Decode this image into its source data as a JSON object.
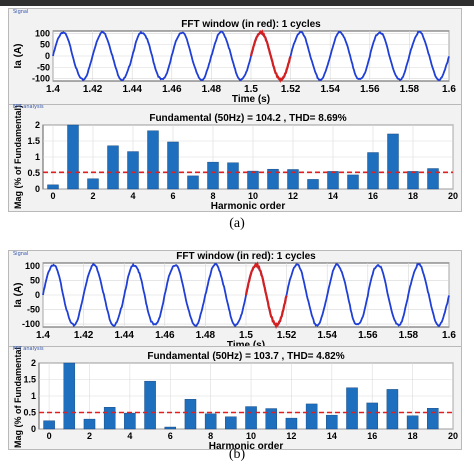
{
  "figures": [
    {
      "caption": "(a)",
      "signal_tag": "Signal",
      "fft_tag": "FFT analysis",
      "signal": {
        "title": "FFT window (in red): 1 cycles",
        "xlabel": "Time (s)",
        "ylabel": "Ia (A)",
        "xlim": [
          1.4,
          1.6
        ],
        "ylim": [
          -110,
          110
        ],
        "xticks": [
          "1.4",
          "1.42",
          "1.44",
          "1.46",
          "1.48",
          "1.5",
          "1.52",
          "1.54",
          "1.56",
          "1.58",
          "1.6"
        ],
        "yticks": [
          "-100",
          "-50",
          "0",
          "50",
          "100"
        ]
      },
      "fft": {
        "title": "Fundamental (50Hz) = 104.2 , THD= 8.69%",
        "xlabel": "Harmonic order",
        "ylabel": "Mag (% of Fundamental)",
        "xticks": [
          "0",
          "2",
          "4",
          "6",
          "8",
          "10",
          "12",
          "14",
          "16",
          "18",
          "20"
        ],
        "yticks": [
          "0",
          "0.5",
          "1",
          "1.5",
          "2"
        ]
      }
    },
    {
      "caption": "(b)",
      "signal_tag": "Signal",
      "fft_tag": "FFT analysis",
      "signal": {
        "title": "FFT window (in red): 1 cycles",
        "xlabel": "Time (s)",
        "ylabel": "Ia (A)",
        "xlim": [
          1.4,
          1.6
        ],
        "ylim": [
          -110,
          110
        ],
        "xticks": [
          "1.4",
          "1.42",
          "1.44",
          "1.46",
          "1.48",
          "1.5",
          "1.52",
          "1.54",
          "1.56",
          "1.58",
          "1.6"
        ],
        "yticks": [
          "-100",
          "-50",
          "0",
          "50",
          "100"
        ]
      },
      "fft": {
        "title": "Fundamental (50Hz) = 103.7 , THD= 4.82%",
        "xlabel": "Harmonic order",
        "ylabel": "Mag (% of Fundamental)",
        "xticks": [
          "0",
          "2",
          "4",
          "6",
          "8",
          "10",
          "12",
          "14",
          "16",
          "18",
          "20"
        ],
        "yticks": [
          "0",
          "0.5",
          "1",
          "1.5",
          "2"
        ]
      }
    }
  ],
  "chart_data": [
    {
      "type": "line",
      "title": "FFT window (in red): 1 cycles",
      "xlabel": "Time (s)",
      "ylabel": "Ia (A)",
      "xlim": [
        1.4,
        1.6
      ],
      "ylim": [
        -110,
        110
      ],
      "series": [
        {
          "role": "signal",
          "frequency_hz": 50,
          "amplitude": 104.2,
          "time_range": [
            1.4,
            1.6
          ],
          "color": "#1f3fd6"
        },
        {
          "role": "fft-window",
          "frequency_hz": 50,
          "amplitude": 104.2,
          "time_range": [
            1.5,
            1.52
          ],
          "color": "#d42020"
        }
      ],
      "grid": true
    },
    {
      "type": "bar",
      "title": "Fundamental (50Hz) = 104.2 , THD= 8.69%",
      "xlabel": "Harmonic order",
      "ylabel": "Mag (% of Fundamental)",
      "x": [
        0,
        1,
        2,
        3,
        4,
        5,
        6,
        7,
        8,
        9,
        10,
        11,
        12,
        13,
        14,
        15,
        16,
        17,
        18,
        19
      ],
      "values": [
        0.13,
        2.0,
        0.32,
        1.35,
        1.17,
        1.82,
        1.47,
        0.41,
        0.84,
        0.82,
        0.56,
        0.62,
        0.61,
        0.3,
        0.55,
        0.44,
        1.14,
        1.72,
        0.55,
        0.64
      ],
      "ylim": [
        0,
        2
      ],
      "threshold": 0.52,
      "bar_color": "#1f6fbf",
      "threshold_color": "#e02020",
      "grid": true
    },
    {
      "type": "line",
      "title": "FFT window (in red): 1 cycles",
      "xlabel": "Time (s)",
      "ylabel": "Ia (A)",
      "xlim": [
        1.4,
        1.6
      ],
      "ylim": [
        -110,
        110
      ],
      "series": [
        {
          "role": "signal",
          "frequency_hz": 50,
          "amplitude": 103.7,
          "time_range": [
            1.4,
            1.6
          ],
          "color": "#1f3fd6"
        },
        {
          "role": "fft-window",
          "frequency_hz": 50,
          "amplitude": 103.7,
          "time_range": [
            1.5,
            1.52
          ],
          "color": "#d42020"
        }
      ],
      "grid": true
    },
    {
      "type": "bar",
      "title": "Fundamental (50Hz) = 103.7 , THD= 4.82%",
      "xlabel": "Harmonic order",
      "ylabel": "Mag (% of Fundamental)",
      "x": [
        0,
        1,
        2,
        3,
        4,
        5,
        6,
        7,
        8,
        9,
        10,
        11,
        12,
        13,
        14,
        15,
        16,
        17,
        18,
        19
      ],
      "values": [
        0.25,
        2.0,
        0.3,
        0.66,
        0.48,
        1.45,
        0.06,
        0.9,
        0.46,
        0.37,
        0.68,
        0.62,
        0.33,
        0.76,
        0.42,
        1.25,
        0.79,
        1.2,
        0.4,
        0.63
      ],
      "ylim": [
        0,
        2
      ],
      "threshold": 0.5,
      "bar_color": "#1f6fbf",
      "threshold_color": "#e02020",
      "grid": true
    }
  ]
}
